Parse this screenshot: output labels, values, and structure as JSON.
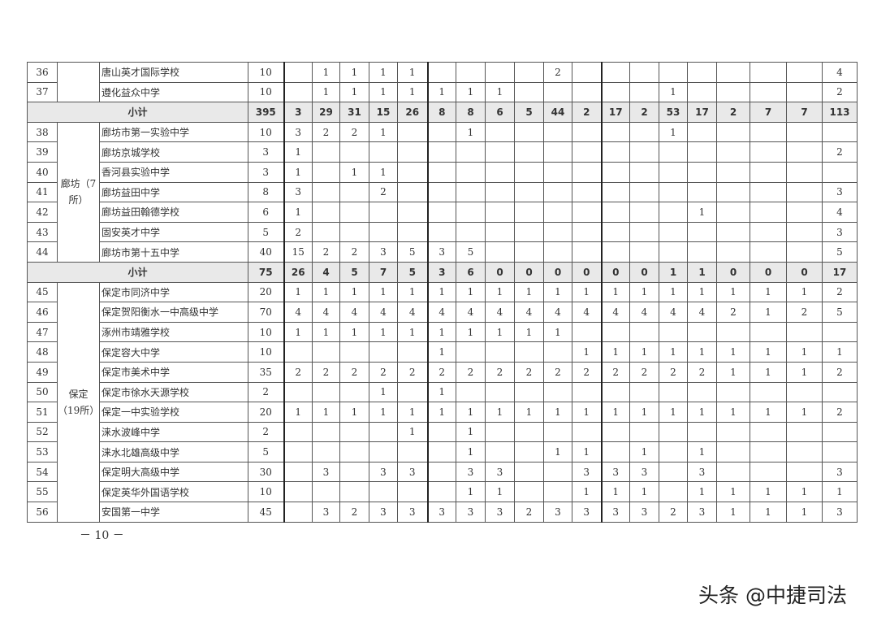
{
  "rows": [
    {
      "type": "row",
      "no": "36",
      "region": "",
      "name": "唐山英才国际学校",
      "total": "10",
      "cols": [
        "",
        "1",
        "1",
        "1",
        "1",
        "",
        "",
        "",
        "",
        "2",
        "",
        "",
        "",
        "",
        "",
        "",
        "",
        "",
        "4"
      ]
    },
    {
      "type": "row",
      "no": "37",
      "region": "",
      "name": "遵化益众中学",
      "total": "10",
      "cols": [
        "",
        "1",
        "1",
        "1",
        "1",
        "1",
        "1",
        "1",
        "",
        "",
        "",
        "",
        "",
        "1",
        "",
        "",
        "",
        "",
        "2"
      ]
    },
    {
      "type": "subtotal",
      "label": "小计",
      "total": "395",
      "cols": [
        "3",
        "29",
        "31",
        "15",
        "26",
        "8",
        "8",
        "6",
        "5",
        "44",
        "2",
        "17",
        "2",
        "53",
        "17",
        "2",
        "7",
        "7",
        "113"
      ]
    },
    {
      "type": "row",
      "no": "38",
      "region": "廊坊（7所）",
      "name": "廊坊市第一实验中学",
      "total": "10",
      "cols": [
        "3",
        "2",
        "2",
        "1",
        "",
        "",
        "1",
        "",
        "",
        "",
        "",
        "",
        "",
        "1",
        "",
        "",
        "",
        "",
        ""
      ]
    },
    {
      "type": "row",
      "no": "39",
      "name": "廊坊京城学校",
      "total": "3",
      "cols": [
        "1",
        "",
        "",
        "",
        "",
        "",
        "",
        "",
        "",
        "",
        "",
        "",
        "",
        "",
        "",
        "",
        "",
        "",
        "2"
      ]
    },
    {
      "type": "row",
      "no": "40",
      "name": "香河县实验中学",
      "total": "3",
      "cols": [
        "1",
        "",
        "1",
        "1",
        "",
        "",
        "",
        "",
        "",
        "",
        "",
        "",
        "",
        "",
        "",
        "",
        "",
        "",
        ""
      ]
    },
    {
      "type": "row",
      "no": "41",
      "name": "廊坊益田中学",
      "total": "8",
      "cols": [
        "3",
        "",
        "",
        "2",
        "",
        "",
        "",
        "",
        "",
        "",
        "",
        "",
        "",
        "",
        "",
        "",
        "",
        "",
        "3"
      ]
    },
    {
      "type": "row",
      "no": "42",
      "name": "廊坊益田翰德学校",
      "total": "6",
      "cols": [
        "1",
        "",
        "",
        "",
        "",
        "",
        "",
        "",
        "",
        "",
        "",
        "",
        "",
        "",
        "1",
        "",
        "",
        "",
        "4"
      ]
    },
    {
      "type": "row",
      "no": "43",
      "name": "固安英才中学",
      "total": "5",
      "cols": [
        "2",
        "",
        "",
        "",
        "",
        "",
        "",
        "",
        "",
        "",
        "",
        "",
        "",
        "",
        "",
        "",
        "",
        "",
        "3"
      ]
    },
    {
      "type": "row",
      "no": "44",
      "name": "廊坊市第十五中学",
      "total": "40",
      "cols": [
        "15",
        "2",
        "2",
        "3",
        "5",
        "3",
        "5",
        "",
        "",
        "",
        "",
        "",
        "",
        "",
        "",
        "",
        "",
        "",
        "5"
      ]
    },
    {
      "type": "subtotal",
      "label": "小计",
      "total": "75",
      "cols": [
        "26",
        "4",
        "5",
        "7",
        "5",
        "3",
        "6",
        "0",
        "0",
        "0",
        "0",
        "0",
        "0",
        "1",
        "1",
        "0",
        "0",
        "0",
        "17"
      ]
    },
    {
      "type": "row",
      "no": "45",
      "region": "保定（19所）",
      "name": "保定市同济中学",
      "total": "20",
      "cols": [
        "1",
        "1",
        "1",
        "1",
        "1",
        "1",
        "1",
        "1",
        "1",
        "1",
        "1",
        "1",
        "1",
        "1",
        "1",
        "1",
        "1",
        "1",
        "2"
      ]
    },
    {
      "type": "row",
      "no": "46",
      "name": "保定贺阳衡水一中高级中学",
      "total": "70",
      "cols": [
        "4",
        "4",
        "4",
        "4",
        "4",
        "4",
        "4",
        "4",
        "4",
        "4",
        "4",
        "4",
        "4",
        "4",
        "4",
        "2",
        "1",
        "2",
        "5"
      ]
    },
    {
      "type": "row",
      "no": "47",
      "name": "涿州市靖雅学校",
      "total": "10",
      "cols": [
        "1",
        "1",
        "1",
        "1",
        "1",
        "1",
        "1",
        "1",
        "1",
        "1",
        "",
        "",
        "",
        "",
        "",
        "",
        "",
        "",
        ""
      ]
    },
    {
      "type": "row",
      "no": "48",
      "name": "保定容大中学",
      "total": "10",
      "cols": [
        "",
        "",
        "",
        "",
        "",
        "1",
        "",
        "",
        "",
        "",
        "1",
        "1",
        "1",
        "1",
        "1",
        "1",
        "1",
        "1",
        "1"
      ]
    },
    {
      "type": "row",
      "no": "49",
      "name": "保定市美术中学",
      "total": "35",
      "cols": [
        "2",
        "2",
        "2",
        "2",
        "2",
        "2",
        "2",
        "2",
        "2",
        "2",
        "2",
        "2",
        "2",
        "2",
        "2",
        "1",
        "1",
        "1",
        "2"
      ]
    },
    {
      "type": "row",
      "no": "50",
      "name": "保定市徐水天源学校",
      "total": "2",
      "cols": [
        "",
        "",
        "",
        "1",
        "",
        "1",
        "",
        "",
        "",
        "",
        "",
        "",
        "",
        "",
        "",
        "",
        "",
        "",
        ""
      ]
    },
    {
      "type": "row",
      "no": "51",
      "name": "保定一中实验学校",
      "total": "20",
      "cols": [
        "1",
        "1",
        "1",
        "1",
        "1",
        "1",
        "1",
        "1",
        "1",
        "1",
        "1",
        "1",
        "1",
        "1",
        "1",
        "1",
        "1",
        "1",
        "2"
      ]
    },
    {
      "type": "row",
      "no": "52",
      "name": "涞水波峰中学",
      "total": "2",
      "cols": [
        "",
        "",
        "",
        "",
        "1",
        "",
        "1",
        "",
        "",
        "",
        "",
        "",
        "",
        "",
        "",
        "",
        "",
        "",
        ""
      ]
    },
    {
      "type": "row",
      "no": "53",
      "name": "涞水北雄高级中学",
      "total": "5",
      "cols": [
        "",
        "",
        "",
        "",
        "",
        "",
        "1",
        "",
        "",
        "1",
        "1",
        "",
        "1",
        "",
        "1",
        "",
        "",
        "",
        ""
      ]
    },
    {
      "type": "row",
      "no": "54",
      "name": "保定明大高级中学",
      "total": "30",
      "cols": [
        "",
        "3",
        "",
        "3",
        "3",
        "",
        "3",
        "3",
        "",
        "",
        "3",
        "3",
        "3",
        "",
        "3",
        "",
        "",
        "",
        "3"
      ]
    },
    {
      "type": "row",
      "no": "55",
      "name": "保定英华外国语学校",
      "total": "10",
      "cols": [
        "",
        "",
        "",
        "",
        "",
        "",
        "1",
        "1",
        "",
        "",
        "1",
        "1",
        "1",
        "",
        "1",
        "1",
        "1",
        "1",
        "1"
      ]
    },
    {
      "type": "row",
      "no": "56",
      "name": "安国第一中学",
      "total": "45",
      "cols": [
        "",
        "3",
        "2",
        "3",
        "3",
        "3",
        "3",
        "3",
        "2",
        "3",
        "3",
        "3",
        "3",
        "2",
        "3",
        "1",
        "1",
        "1",
        "3"
      ]
    }
  ],
  "page_number": "－ 10 －",
  "watermark": "头条 @中捷司法"
}
